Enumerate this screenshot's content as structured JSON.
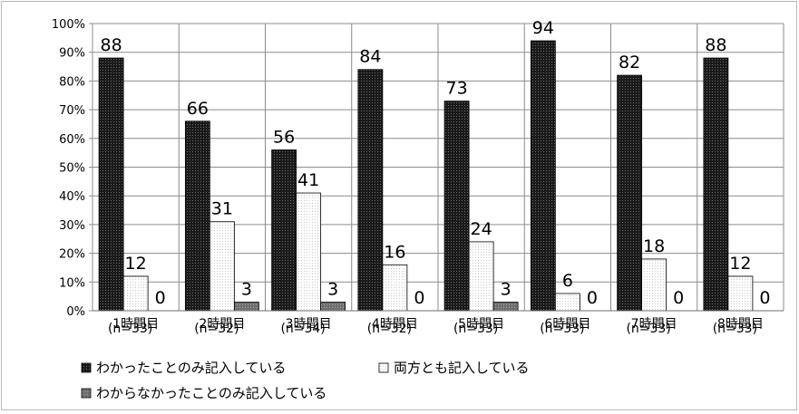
{
  "chart_data": {
    "type": "bar",
    "title": "",
    "xlabel": "",
    "ylabel": "",
    "ylim": [
      0,
      100
    ],
    "y_ticks": [
      "0%",
      "10%",
      "20%",
      "30%",
      "40%",
      "50%",
      "60%",
      "70%",
      "80%",
      "90%",
      "100%"
    ],
    "grid": true,
    "legend_position": "bottom",
    "categories": [
      {
        "line1": "1時間目",
        "line2": "(n=33)"
      },
      {
        "line1": "2時間目",
        "line2": "(n=32)"
      },
      {
        "line1": "3時間目",
        "line2": "(n=34)"
      },
      {
        "line1": "4時間目",
        "line2": "(n=32)"
      },
      {
        "line1": "5時間目",
        "line2": "(n=33)"
      },
      {
        "line1": "6時間目",
        "line2": "(n=33)"
      },
      {
        "line1": "7時間目",
        "line2": "(n=33)"
      },
      {
        "line1": "8時間目",
        "line2": "(n=33)"
      }
    ],
    "series": [
      {
        "name": "わかったことのみ記入している",
        "values": [
          88,
          66,
          56,
          84,
          73,
          94,
          82,
          88
        ],
        "color": "#1a1a1a"
      },
      {
        "name": "両方とも記入している",
        "values": [
          12,
          31,
          41,
          16,
          24,
          6,
          18,
          12
        ],
        "color": "#f2f2f2"
      },
      {
        "name": "わからなかったことのみ記入している",
        "values": [
          0,
          3,
          3,
          0,
          3,
          0,
          0,
          0
        ],
        "color": "#7a7a7a"
      }
    ],
    "data_labels": [
      [
        "88",
        "66",
        "56",
        "84",
        "73",
        "94",
        "82",
        "88"
      ],
      [
        "12",
        "31",
        "41",
        "16",
        "24",
        "6",
        "18",
        "12"
      ],
      [
        "0",
        "3",
        "3",
        "0",
        "3",
        "0",
        "0",
        "0"
      ]
    ]
  }
}
